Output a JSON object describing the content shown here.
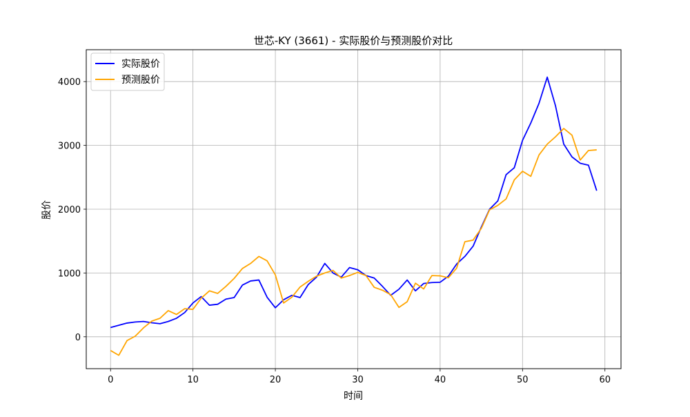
{
  "chart_data": {
    "type": "line",
    "title": "世芯-KY (3661) - 实际股价与预测股价对比",
    "xlabel": "时间",
    "ylabel": "股价",
    "xlim": [
      -2.95,
      61.95
    ],
    "ylim": [
      -500,
      4500
    ],
    "xticks": [
      0,
      10,
      20,
      30,
      40,
      50,
      60
    ],
    "yticks": [
      0,
      1000,
      2000,
      3000,
      4000
    ],
    "grid": true,
    "legend_position": "top-left",
    "series": [
      {
        "name": "实际股价",
        "color": "#0000ff",
        "values": [
          145,
          180,
          215,
          232,
          240,
          220,
          205,
          240,
          290,
          380,
          530,
          630,
          495,
          510,
          590,
          615,
          810,
          875,
          890,
          620,
          455,
          580,
          650,
          615,
          820,
          935,
          1150,
          1000,
          935,
          1085,
          1050,
          960,
          920,
          790,
          650,
          745,
          890,
          720,
          835,
          850,
          855,
          950,
          1140,
          1260,
          1420,
          1720,
          2000,
          2130,
          2540,
          2650,
          3080,
          3350,
          3660,
          4070,
          3620,
          3020,
          2820,
          2720,
          2690,
          2290
        ]
      },
      {
        "name": "预测股价",
        "color": "#ffa500",
        "values": [
          -215,
          -290,
          -60,
          10,
          140,
          245,
          290,
          410,
          350,
          440,
          430,
          605,
          720,
          680,
          790,
          915,
          1070,
          1150,
          1260,
          1190,
          970,
          530,
          620,
          780,
          870,
          950,
          1000,
          1040,
          920,
          960,
          1010,
          960,
          775,
          730,
          660,
          460,
          550,
          840,
          750,
          960,
          955,
          925,
          1075,
          1490,
          1515,
          1700,
          1990,
          2060,
          2160,
          2460,
          2595,
          2515,
          2850,
          3020,
          3135,
          3265,
          3160,
          2770,
          2920,
          2930
        ]
      }
    ]
  }
}
